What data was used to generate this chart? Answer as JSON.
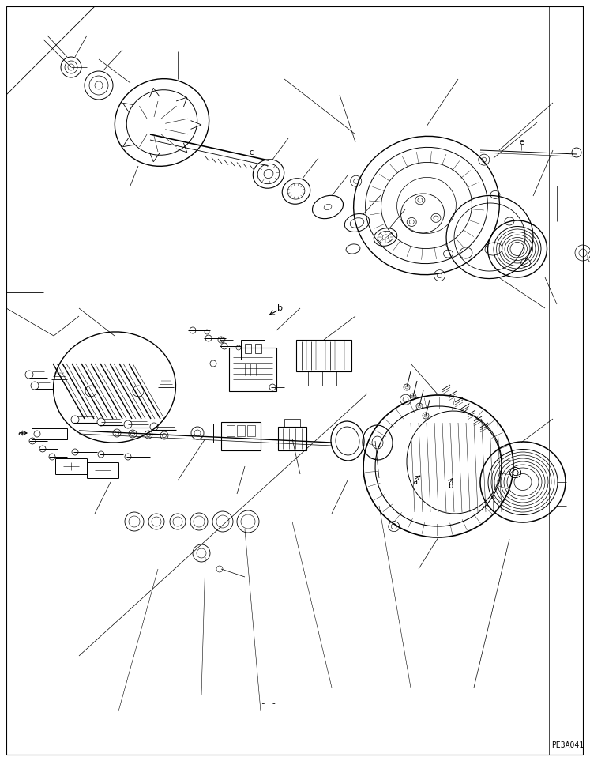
{
  "background_color": "#ffffff",
  "line_color": "#000000",
  "figure_width": 7.47,
  "figure_height": 9.63,
  "dpi": 100,
  "part_code": "PE3A041",
  "label_a": "a",
  "label_b": "b",
  "label_c": "c",
  "label_e": "e",
  "border_color": "#000000"
}
